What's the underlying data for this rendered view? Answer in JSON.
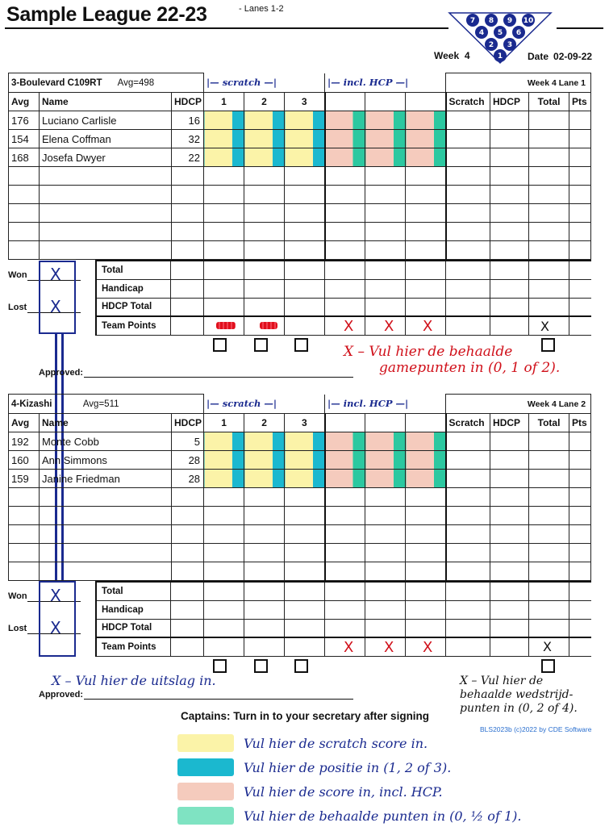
{
  "header": {
    "title": "Sample League 22-23",
    "lanes": "- Lanes 1-2",
    "week_label": "Week",
    "week_value": "4",
    "date_label": "Date",
    "date_value": "02-09-22",
    "pin_numbers": [
      "7",
      "8",
      "9",
      "10",
      "4",
      "5",
      "6",
      "2",
      "3",
      "1"
    ]
  },
  "columns": {
    "avg": "Avg",
    "name": "Name",
    "hdcp": "HDCP",
    "g1": "1",
    "g2": "2",
    "g3": "3",
    "scratch": "Scratch",
    "hdcp2": "HDCP",
    "total": "Total",
    "pts": "Pts"
  },
  "team1": {
    "name": "3-Boulevard C109RT",
    "avg": "Avg=498",
    "week_lane": "Week 4  Lane 1",
    "scratch_note": "scratch",
    "hcp_note": "incl. HCP",
    "players": [
      {
        "avg": "176",
        "name": "Luciano Carlisle",
        "hdcp": "16"
      },
      {
        "avg": "154",
        "name": "Elena Coffman",
        "hdcp": "32"
      },
      {
        "avg": "168",
        "name": "Josefa Dwyer",
        "hdcp": "22"
      }
    ],
    "won": "Won",
    "lost": "Lost",
    "won_mark": "X",
    "lost_mark": "X",
    "footer": [
      "Total",
      "Handicap",
      "HDCP Total",
      "Team Points"
    ],
    "approved": "Approved:",
    "note_red": "X – Vul hier de behaalde gamepunten in (0, 1 of 2).",
    "note_red_mark": "X",
    "note_red_line1": "– Vul hier de behaalde",
    "note_red_line2": "gamepunten in (0, 1 of 2)."
  },
  "team2": {
    "name": "4-Kizashi",
    "avg": "Avg=511",
    "week_lane": "Week 4  Lane 2",
    "scratch_note": "scratch",
    "hcp_note": "incl. HCP",
    "players": [
      {
        "avg": "192",
        "name": "Monte Cobb",
        "hdcp": "5"
      },
      {
        "avg": "160",
        "name": "Ann Simmons",
        "hdcp": "28"
      },
      {
        "avg": "159",
        "name": "Janine Friedman",
        "hdcp": "28"
      }
    ],
    "won": "Won",
    "lost": "Lost",
    "won_mark": "X",
    "lost_mark": "X",
    "footer": [
      "Total",
      "Handicap",
      "HDCP Total",
      "Team Points"
    ],
    "approved": "Approved:",
    "note_blue": "X – Vul hier de uitslag in.",
    "note_black_line1": "X – Vul hier de",
    "note_black_line2": "behaalde wedstrijd-",
    "note_black_line3": "punten in (0, 2 of 4)."
  },
  "marks": {
    "x": "X"
  },
  "footer": {
    "captains": "Captains: Turn in to your secretary after signing",
    "credit": "BLS2023b (c)2022 by CDE Software",
    "legend": [
      {
        "color": "#fbf3a8",
        "text": "Vul hier de scratch score in."
      },
      {
        "color": "#1bb8cf",
        "text": "Vul hier de positie in (1, 2 of 3)."
      },
      {
        "color": "#f5cbbd",
        "text": "Vul hier de score in, incl. HCP."
      },
      {
        "color": "#7fe3c2",
        "text": "Vul hier de behaalde punten in (0, ½ of 1)."
      }
    ]
  }
}
